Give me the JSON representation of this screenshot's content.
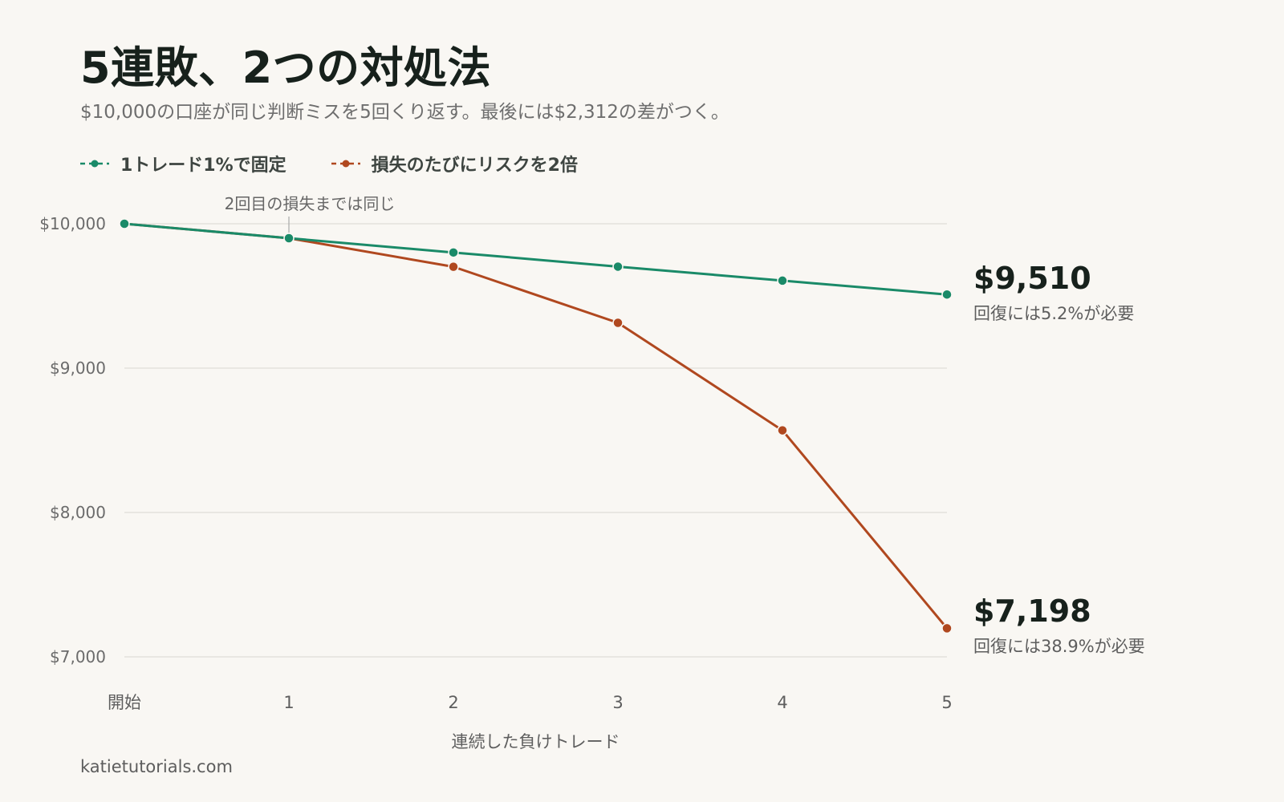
{
  "title": "5連敗、2つの対処法",
  "subtitle": "$10,000の口座が同じ判断ミスを5回くり返す。最後には$2,312の差がつく。",
  "footer": "katietutorials.com",
  "colors": {
    "fixed": "#1a8a68",
    "doubling": "#b0481f",
    "grid": "#e4e2dc",
    "text_dark": "#17211c",
    "text_muted": "#6e6e6e"
  },
  "chart_data": {
    "type": "line",
    "x": [
      "開始",
      "1",
      "2",
      "3",
      "4",
      "5"
    ],
    "xlabel": "連続した負けトレード",
    "ylabel": "",
    "ylim": [
      7000,
      10000
    ],
    "yticks": [
      {
        "value": 10000,
        "label": "$10,000"
      },
      {
        "value": 9000,
        "label": "$9,000"
      },
      {
        "value": 8000,
        "label": "$8,000"
      },
      {
        "value": 7000,
        "label": "$7,000"
      }
    ],
    "grid": true,
    "legend": "top-left",
    "series": [
      {
        "name": "1トレード1%で固定",
        "color": "#1a8a68",
        "values": [
          10000,
          9900,
          9801,
          9703,
          9606,
          9510
        ],
        "end_value_label": "$9,510",
        "end_note": "回復には5.2%が必要"
      },
      {
        "name": "損失のたびにリスクを2倍",
        "color": "#b0481f",
        "values": [
          10000,
          9900,
          9702,
          9314,
          8569,
          7198
        ],
        "end_value_label": "$7,198",
        "end_note": "回復には38.9%が必要"
      }
    ],
    "annotations": [
      {
        "x": "1",
        "text": "2回目の損失までは同じ"
      }
    ]
  }
}
